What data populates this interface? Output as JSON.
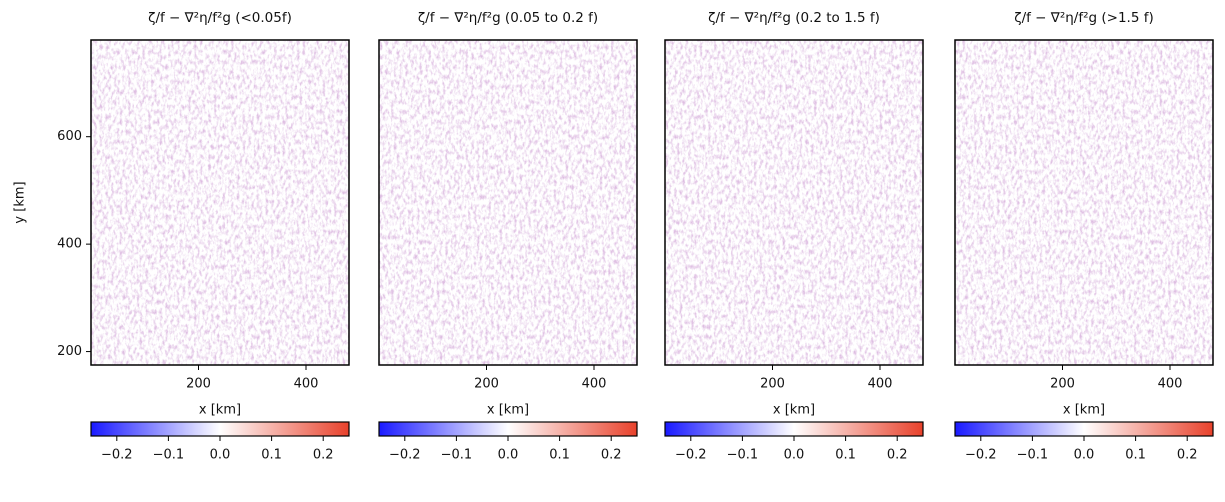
{
  "chart_data": [
    {
      "type": "heatmap",
      "title": "ζ/f − ∇²η/f²g (<0.05f)",
      "xlabel": "x [km]",
      "ylabel": "y [km]",
      "xlim": [
        0,
        480
      ],
      "ylim": [
        175,
        780
      ],
      "xticks": [
        200,
        400
      ],
      "yticks": [
        200,
        400,
        600
      ],
      "clim": [
        -0.25,
        0.25
      ],
      "colormap": [
        "#1a1aff",
        "#ffffff",
        "#e8412b"
      ],
      "cticks": [
        {
          "value": -0.2,
          "label": "−0.2"
        },
        {
          "value": -0.1,
          "label": "−0.1"
        },
        {
          "value": 0,
          "label": "0.0"
        },
        0.1,
        0.2
      ]
    },
    {
      "type": "heatmap",
      "title": "ζ/f − ∇²η/f²g (0.05 to 0.2 f)",
      "xlabel": "x [km]",
      "xlim": [
        0,
        480
      ],
      "ylim": [
        175,
        780
      ],
      "xticks": [
        200,
        400
      ],
      "clim": [
        -0.25,
        0.25
      ],
      "colormap": [
        "#1a1aff",
        "#ffffff",
        "#e8412b"
      ],
      "cticks": [
        {
          "value": -0.2,
          "label": "−0.2"
        },
        {
          "value": -0.1,
          "label": "−0.1"
        },
        {
          "value": 0,
          "label": "0.0"
        },
        0.1,
        0.2
      ]
    },
    {
      "type": "heatmap",
      "title": "ζ/f − ∇²η/f²g (0.2 to 1.5 f)",
      "xlabel": "x [km]",
      "xlim": [
        0,
        480
      ],
      "ylim": [
        175,
        780
      ],
      "xticks": [
        200,
        400
      ],
      "clim": [
        -0.25,
        0.25
      ],
      "colormap": [
        "#1a1aff",
        "#ffffff",
        "#e8412b"
      ],
      "cticks": [
        {
          "value": -0.2,
          "label": "−0.2"
        },
        {
          "value": -0.1,
          "label": "−0.1"
        },
        {
          "value": 0,
          "label": "0.0"
        },
        0.1,
        0.2
      ]
    },
    {
      "type": "heatmap",
      "title": "ζ/f − ∇²η/f²g (>1.5 f)",
      "xlabel": "x [km]",
      "xlim": [
        0,
        480
      ],
      "ylim": [
        175,
        780
      ],
      "xticks": [
        200,
        400
      ],
      "clim": [
        -0.25,
        0.25
      ],
      "colormap": [
        "#1a1aff",
        "#ffffff",
        "#e8412b"
      ],
      "cticks": [
        {
          "value": -0.2,
          "label": "−0.2"
        },
        {
          "value": -0.1,
          "label": "−0.1"
        },
        {
          "value": 0,
          "label": "0.0"
        },
        0.1,
        0.2
      ]
    }
  ]
}
